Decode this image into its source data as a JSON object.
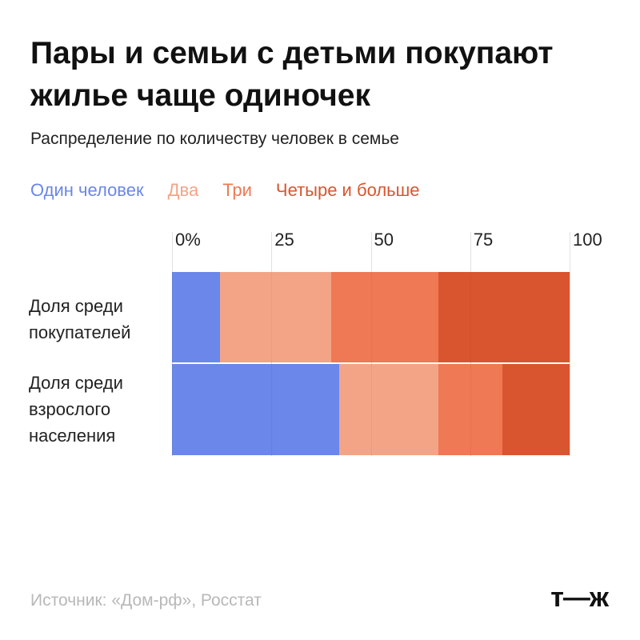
{
  "chart_data": {
    "type": "stacked-barh",
    "title": "Пары и семьи с детьми покупают жилье чаще одиночек",
    "subtitle": "Распределение по количеству человек в семье",
    "categories": [
      "Доля среди покупателей",
      "Доля среди взрослого населения"
    ],
    "series": [
      {
        "name": "Один человек",
        "color": "#6a87e9",
        "values": [
          12,
          42
        ]
      },
      {
        "name": "Два",
        "color": "#f3a487",
        "values": [
          28,
          25
        ]
      },
      {
        "name": "Три",
        "color": "#ef7855",
        "values": [
          27,
          16
        ]
      },
      {
        "name": "Четыре и больше",
        "color": "#d9552f",
        "values": [
          33,
          17
        ]
      }
    ],
    "xlim": [
      0,
      100
    ],
    "xticks": [
      {
        "value": 0,
        "label": "0%"
      },
      25,
      50,
      75,
      100
    ],
    "grid": true,
    "source": "Источник: «Дом-рф», Росстат",
    "logo": "т—ж"
  }
}
